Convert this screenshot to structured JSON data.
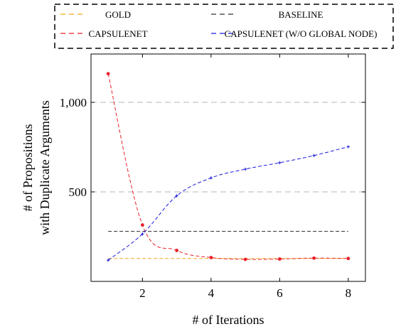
{
  "chart_data": {
    "type": "line",
    "xlabel": "# of Iterations",
    "ylabel_lines": [
      "# of Propositions",
      "with Duplicate Arguments"
    ],
    "xlim": [
      0.5,
      8.5
    ],
    "ylim": [
      0,
      1270
    ],
    "x_ticks": [
      2,
      4,
      6,
      8
    ],
    "x_tick_labels": [
      "2",
      "4",
      "6",
      "8"
    ],
    "y_ticks": [
      500,
      1000
    ],
    "y_tick_labels": [
      "500",
      "1,000"
    ],
    "grid": "horizontal dashed at y ticks",
    "legend_position": "top, outside plot",
    "series": [
      {
        "name": "Gold",
        "name_display": "GOLD",
        "color": "#f5a623",
        "dash": "dashed",
        "marker": "none",
        "x": [
          1,
          8
        ],
        "y": [
          128,
          128
        ]
      },
      {
        "name": "Baseline",
        "name_display": "BASELINE",
        "color": "#333333",
        "dash": "dashed",
        "marker": "none",
        "x": [
          1,
          8
        ],
        "y": [
          280,
          280
        ]
      },
      {
        "name": "CapsuleNet",
        "name_display": "CAPSULENET",
        "color": "#e8212a",
        "dash": "dashed",
        "marker": "circle",
        "x": [
          1,
          2,
          3,
          4,
          5,
          6,
          7,
          8
        ],
        "y": [
          1160,
          315,
          173,
          133,
          123,
          125,
          130,
          128
        ]
      },
      {
        "name": "CapsuleNet (w/o Global Node)",
        "name_display": "CAPSULENET (W/O GLOBAL NODE)",
        "color": "#1a1adb",
        "dash": "dashed",
        "marker": "plus",
        "x": [
          1,
          2,
          3,
          4,
          5,
          6,
          7,
          8
        ],
        "y": [
          118,
          265,
          478,
          578,
          627,
          663,
          703,
          752
        ]
      }
    ]
  }
}
